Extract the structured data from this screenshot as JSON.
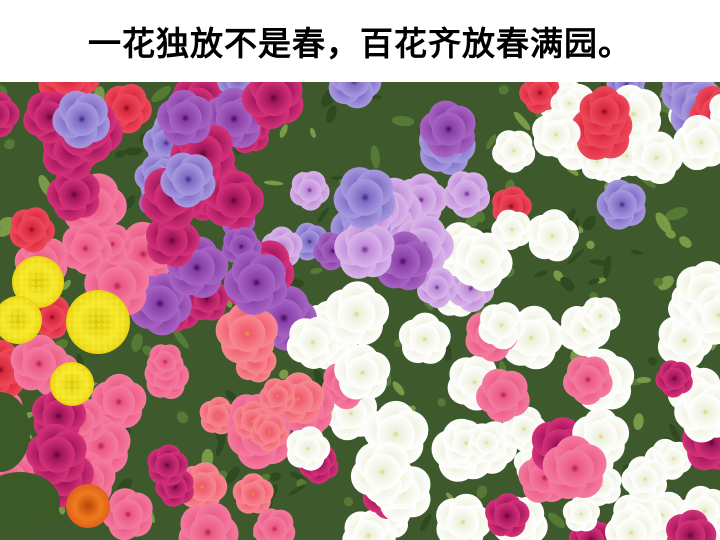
{
  "slide": {
    "title": "一花独放不是春，百花齐放春满园。"
  },
  "photo": {
    "subject": "flower-bed",
    "colors": {
      "foliage": "#3e5a2c",
      "magenta": "#c2185b",
      "pink": "#f06292",
      "coral": "#f4607a",
      "purple": "#8e44ad",
      "violet": "#9575cd",
      "white": "#f7f7f7",
      "yellow": "#f2e21c",
      "orange": "#e8731a"
    }
  }
}
